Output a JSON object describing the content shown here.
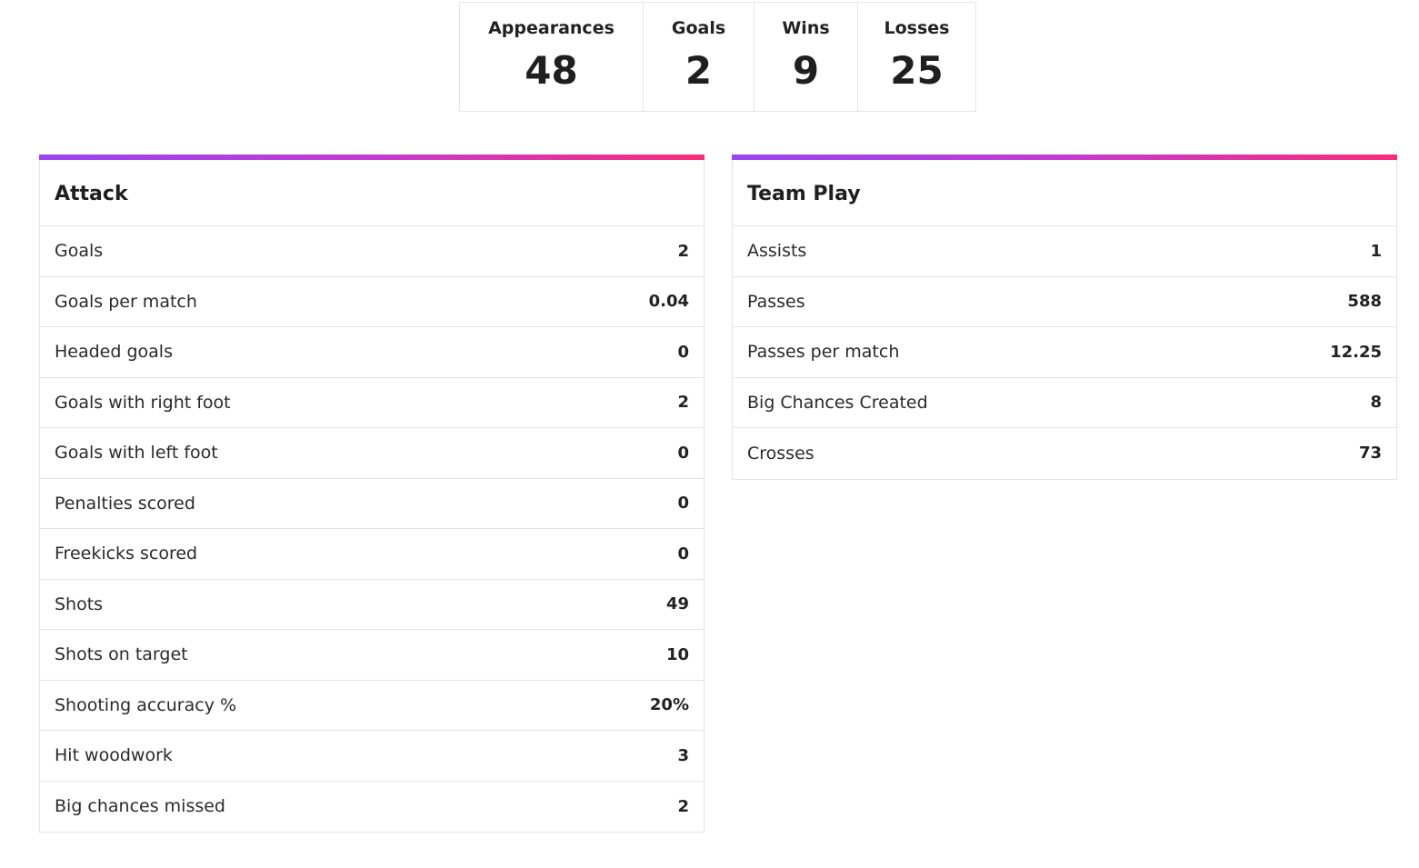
{
  "summary": [
    {
      "label": "Appearances",
      "value": "48"
    },
    {
      "label": "Goals",
      "value": "2"
    },
    {
      "label": "Wins",
      "value": "9"
    },
    {
      "label": "Losses",
      "value": "25"
    }
  ],
  "attack": {
    "title": "Attack",
    "rows": [
      {
        "label": "Goals",
        "value": "2"
      },
      {
        "label": "Goals per match",
        "value": "0.04"
      },
      {
        "label": "Headed goals",
        "value": "0"
      },
      {
        "label": "Goals with right foot",
        "value": "2"
      },
      {
        "label": "Goals with left foot",
        "value": "0"
      },
      {
        "label": "Penalties scored",
        "value": "0"
      },
      {
        "label": "Freekicks scored",
        "value": "0"
      },
      {
        "label": "Shots",
        "value": "49"
      },
      {
        "label": "Shots on target",
        "value": "10"
      },
      {
        "label": "Shooting accuracy %",
        "value": "20%"
      },
      {
        "label": "Hit woodwork",
        "value": "3"
      },
      {
        "label": "Big chances missed",
        "value": "2"
      }
    ]
  },
  "team_play": {
    "title": "Team Play",
    "rows": [
      {
        "label": "Assists",
        "value": "1"
      },
      {
        "label": "Passes",
        "value": "588"
      },
      {
        "label": "Passes per match",
        "value": "12.25"
      },
      {
        "label": "Big Chances Created",
        "value": "8"
      },
      {
        "label": "Crosses",
        "value": "73"
      }
    ]
  },
  "colors": {
    "accent_start": "#9945f2",
    "accent_end": "#f72e7a"
  }
}
